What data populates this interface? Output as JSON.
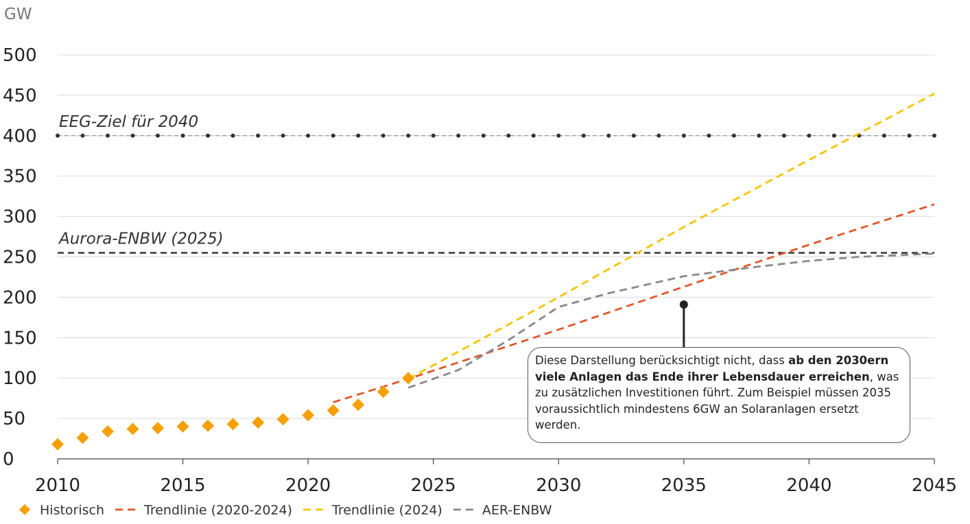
{
  "chart_data": {
    "type": "line",
    "ylabel": "GW",
    "xlim": [
      2010,
      2045
    ],
    "ylim": [
      0,
      500
    ],
    "x_ticks": [
      "2010",
      "2015",
      "2020",
      "2025",
      "2030",
      "2035",
      "2040",
      "2045"
    ],
    "y_ticks": [
      "0",
      "50",
      "100",
      "150",
      "200",
      "250",
      "300",
      "350",
      "400",
      "450",
      "500"
    ],
    "grid": "horizontal",
    "legend_position": "bottom-left",
    "series": [
      {
        "name": "Historisch",
        "style": "diamond-markers",
        "color": "#F5A000",
        "x": [
          2010,
          2011,
          2012,
          2013,
          2014,
          2015,
          2016,
          2017,
          2018,
          2019,
          2020,
          2021,
          2022,
          2023,
          2024
        ],
        "y": [
          18,
          26,
          34,
          37,
          38,
          40,
          41,
          43,
          45,
          49,
          54,
          60,
          67,
          83,
          100
        ]
      },
      {
        "name": "Trendlinie (2020-2024)",
        "style": "dashed",
        "color": "#E0562A",
        "x": [
          2021,
          2024,
          2030,
          2035,
          2040,
          2045
        ],
        "y": [
          70,
          99,
          160,
          213,
          265,
          315
        ]
      },
      {
        "name": "Trendlinie (2024)",
        "style": "dashed",
        "color": "#F5C400",
        "x": [
          2024,
          2030,
          2035,
          2040,
          2045
        ],
        "y": [
          99,
          200,
          287,
          370,
          452
        ]
      },
      {
        "name": "AER-ENBW",
        "style": "dashed",
        "color": "#888888",
        "x": [
          2024,
          2026,
          2028,
          2030,
          2032,
          2035,
          2038,
          2040,
          2042,
          2045
        ],
        "y": [
          88,
          110,
          147,
          188,
          205,
          226,
          238,
          245,
          250,
          254
        ]
      }
    ],
    "reference_lines": [
      {
        "label": "EEG-Ziel für 2040",
        "y": 400,
        "style": "dotted",
        "color": "#333333"
      },
      {
        "label": "Aurora-ENBW (2025)",
        "y": 255,
        "style": "dashed",
        "color": "#222222"
      }
    ],
    "annotation": {
      "target_x": 2035,
      "target_y": 191,
      "text_plain_1": "Diese Darstellung berücksichtigt nicht, dass ",
      "text_bold": "ab den 2030ern viele Anlagen das Ende ihrer Lebensdauer erreichen",
      "text_plain_2": ", was zu zusätzlichen Investitionen führt. Zum Beispiel müssen 2035 voraussichtlich mindestens 6GW an Solaranlagen ersetzt werden."
    }
  }
}
